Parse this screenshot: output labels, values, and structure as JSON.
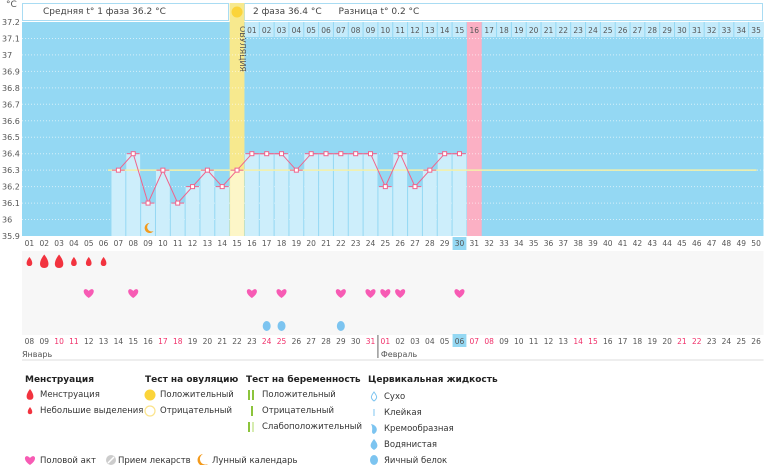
{
  "header": {
    "unit": "°C",
    "phase1": "Средняя t° 1 фаза 36.2 °C",
    "phase2": "2 фаза 36.4 °C",
    "difference": "Разница t° 0.2 °C",
    "ovulation_label": "ОВУЛЯЦИЯ"
  },
  "chart_data": {
    "type": "bar+line",
    "ylim": [
      35.9,
      37.2
    ],
    "yticks": [
      "37.2",
      "37.1",
      "37",
      "36.9",
      "36.8",
      "36.7",
      "36.6",
      "36.5",
      "36.4",
      "36.3",
      "36.2",
      "36.1",
      "36",
      "35.9"
    ],
    "coverline": 36.3,
    "cycle_days": [
      "01",
      "02",
      "03",
      "04",
      "05",
      "06",
      "07",
      "08",
      "09",
      "10",
      "11",
      "12",
      "13",
      "14",
      "15",
      "16",
      "17",
      "18",
      "19",
      "20",
      "21",
      "22",
      "23",
      "24",
      "25",
      "26",
      "27",
      "28",
      "29",
      "30",
      "31",
      "32",
      "33",
      "34",
      "35",
      "36",
      "37",
      "38",
      "39",
      "40",
      "41",
      "42",
      "43",
      "44",
      "45",
      "46",
      "47",
      "48",
      "49",
      "50"
    ],
    "temperatures": [
      null,
      null,
      null,
      null,
      null,
      null,
      36.3,
      36.4,
      36.1,
      36.3,
      36.1,
      36.2,
      36.3,
      36.2,
      36.3,
      36.4,
      36.4,
      36.4,
      36.3,
      36.4,
      36.4,
      36.4,
      36.4,
      36.4,
      36.2,
      36.4,
      36.2,
      36.3,
      36.4,
      36.4
    ],
    "ovulation_day": 15,
    "expected_period_day": 31,
    "today_day": 30,
    "phase2_days": [
      "01",
      "02",
      "03",
      "04",
      "05",
      "06",
      "07",
      "08",
      "09",
      "10",
      "11",
      "12",
      "13",
      "14",
      "15",
      "16",
      "17",
      "18",
      "19",
      "20",
      "21",
      "22",
      "23",
      "24",
      "25",
      "26",
      "27",
      "28",
      "29",
      "30",
      "31",
      "32",
      "33",
      "34",
      "35"
    ],
    "dates": [
      "08",
      "09",
      "10",
      "11",
      "12",
      "13",
      "14",
      "15",
      "16",
      "17",
      "18",
      "19",
      "20",
      "21",
      "22",
      "23",
      "24",
      "25",
      "26",
      "27",
      "28",
      "29",
      "30",
      "31",
      "01",
      "02",
      "03",
      "04",
      "05",
      "06",
      "07",
      "08",
      "09",
      "10",
      "11",
      "12",
      "13",
      "14",
      "15",
      "16",
      "17",
      "18",
      "19",
      "20",
      "21",
      "22",
      "23",
      "24",
      "25",
      "26"
    ],
    "holiday_days": [
      3,
      4,
      10,
      11,
      17,
      18,
      24,
      25,
      31,
      32,
      38,
      39,
      45,
      46
    ],
    "months": [
      {
        "label": "Январь",
        "start_day": 1
      },
      {
        "label": "Февраль",
        "start_day": 25
      }
    ],
    "menstruation": {
      "1": "light",
      "2": "heavy",
      "3": "heavy",
      "4": "light",
      "5": "light",
      "6": "light"
    },
    "intercourse_days": [
      5,
      8,
      16,
      18,
      22,
      24,
      25,
      26,
      30
    ],
    "egg_white_days": [
      17,
      18,
      22
    ],
    "moon_days": [
      9
    ]
  },
  "colors": {
    "plot": "#94d8f3",
    "bar": "#cdeefb",
    "line": "#f0648c",
    "ovulation": "#f7e98e",
    "period": "#fbb0c4",
    "coverline": "#f4f0a8",
    "holiday": "#f0306a",
    "blood": "#f2333f",
    "heart": "#f75bb4",
    "egg": "#7cc4f0",
    "moon": "#f39a1c"
  },
  "legend": {
    "menstruation": {
      "title": "Менструация",
      "items": [
        "Менструация",
        "Небольшие выделения"
      ]
    },
    "ovulation_test": {
      "title": "Тест на овуляцию",
      "items": [
        "Положительный",
        "Отрицательный"
      ]
    },
    "pregnancy_test": {
      "title": "Тест на беременность",
      "items": [
        "Положительный",
        "Отрицательный",
        "Слабоположительный"
      ]
    },
    "cervical": {
      "title": "Цервикальная жидкость",
      "items": [
        "Сухо",
        "Клейкая",
        "Кремообразная",
        "Водянистая",
        "Яичный белок"
      ]
    },
    "other": [
      "Половой акт",
      "Прием лекарств",
      "Лунный календарь"
    ]
  }
}
